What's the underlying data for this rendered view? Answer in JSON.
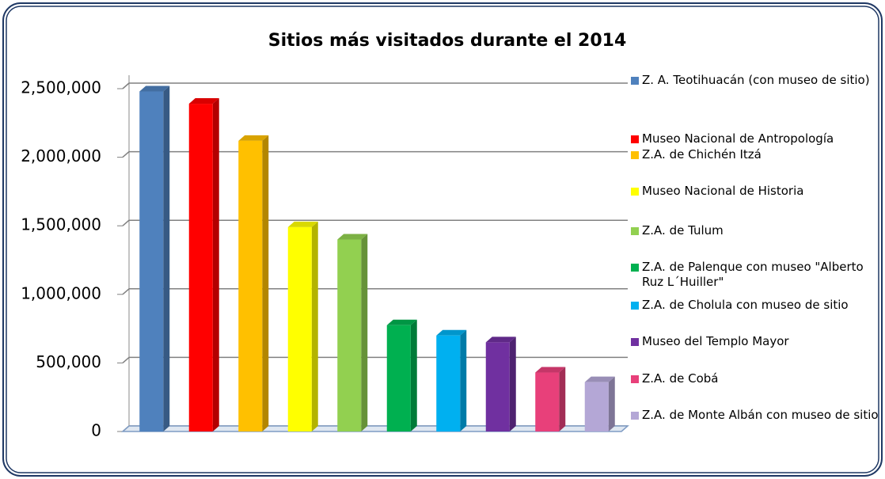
{
  "chart_data": {
    "type": "bar",
    "title": "Sitios más visitados durante el 2014",
    "categories": [
      "Z. A. Teotihuacán (con museo  de sitio)",
      "Museo Nacional de Antropología",
      "Z.A. de Chichén Itzá",
      "Museo Nacional de Historia",
      "Z.A. de Tulum",
      "Z.A. de Palenque con museo \"Alberto Ruz L´Huiller\"",
      "Z.A. de Cholula con museo de sitio",
      "Museo del Templo Mayor",
      "Z.A. de Cobá",
      "Z.A. de Monte Albán con museo de sitio"
    ],
    "values": [
      2480000,
      2390000,
      2120000,
      1490000,
      1400000,
      775000,
      700000,
      650000,
      430000,
      360000
    ],
    "colors": [
      "#4f81bd",
      "#ff0000",
      "#ffc000",
      "#ffff00",
      "#92d050",
      "#00b050",
      "#00b0f0",
      "#7030a0",
      "#e8407a",
      "#b4a7d6"
    ],
    "ylim": [
      0,
      2500000
    ],
    "yticks": [
      0,
      {
        "value": 500000,
        "label": "500,000"
      },
      {
        "value": 1000000,
        "label": "1,000,000"
      },
      {
        "value": 1500000,
        "label": "1,500,000"
      },
      {
        "value": 2000000,
        "label": "2,000,000"
      },
      {
        "value": 2500000,
        "label": "2,500,000"
      }
    ],
    "grid": true,
    "legend": "right"
  }
}
